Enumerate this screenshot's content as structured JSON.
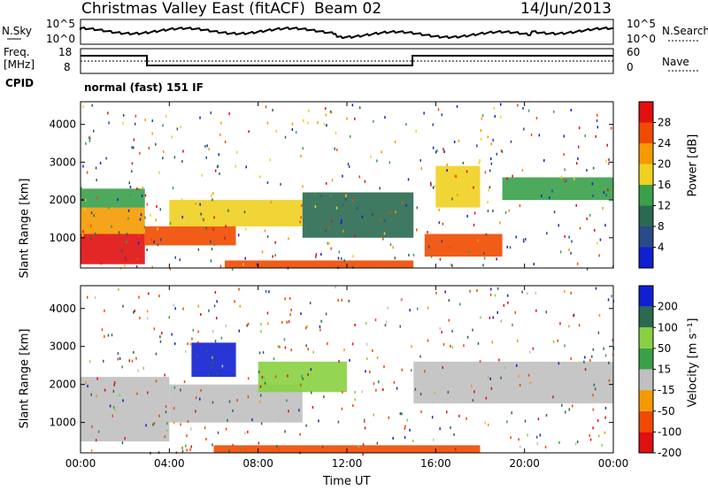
{
  "header": {
    "station": "Christmas Valley East (fitACF)",
    "beam": "Beam 02",
    "date": "14/Jun/2013"
  },
  "noise_panel": {
    "left_label": "N.Sky",
    "right_label": "N.Search",
    "left_ticks": [
      "10^5",
      "10^0"
    ],
    "right_ticks": [
      "10^5",
      "10^0"
    ]
  },
  "freq_panel": {
    "left_label_1": "Freq.",
    "left_label_2": "[MHz]",
    "right_label": "Nave",
    "left_ticks": [
      "18",
      "8"
    ],
    "right_ticks": [
      "60",
      "0"
    ]
  },
  "cpid": {
    "label": "CPID",
    "value": "normal (fast) 151 IF"
  },
  "colors": {
    "red": "#e01010",
    "orange_red": "#f04a00",
    "orange": "#f59a00",
    "yellow": "#f0d020",
    "green": "#3aa04a",
    "dark_green": "#2a6a50",
    "blue_grey": "#2a4a8a",
    "blue": "#1020d0",
    "grey": "#c0c0c0",
    "light_green": "#88d040"
  },
  "chart_data": [
    {
      "type": "heatmap",
      "title": "",
      "xlabel": "Time UT",
      "ylabel": "Slant Range [km]",
      "x_ticks": [
        "00:00",
        "04:00",
        "08:00",
        "12:00",
        "16:00",
        "20:00",
        "00:00"
      ],
      "y_ticks": [
        "1000",
        "2000",
        "3000",
        "4000"
      ],
      "xlim": [
        0,
        24
      ],
      "ylim": [
        200,
        4600
      ],
      "colorbar": {
        "label": "Power [dB]",
        "ticks": [
          "4",
          "8",
          "12",
          "16",
          "20",
          "24",
          "28"
        ],
        "range": [
          0,
          30
        ]
      },
      "regions": [
        {
          "t": [
            0,
            2.9
          ],
          "r": [
            300,
            1100
          ],
          "value": 27
        },
        {
          "t": [
            0,
            2.9
          ],
          "r": [
            1100,
            1800
          ],
          "value": 20
        },
        {
          "t": [
            0,
            2.9
          ],
          "r": [
            1800,
            2300
          ],
          "value": 14
        },
        {
          "t": [
            2.9,
            7
          ],
          "r": [
            800,
            1300
          ],
          "value": 26
        },
        {
          "t": [
            4,
            10
          ],
          "r": [
            1300,
            2000
          ],
          "value": 16
        },
        {
          "t": [
            10,
            15
          ],
          "r": [
            1000,
            2200
          ],
          "value": 10
        },
        {
          "t": [
            15.5,
            19
          ],
          "r": [
            500,
            1100
          ],
          "value": 25
        },
        {
          "t": [
            16,
            18
          ],
          "r": [
            1800,
            2900
          ],
          "value": 18
        },
        {
          "t": [
            19,
            24
          ],
          "r": [
            2000,
            2600
          ],
          "value": 13
        },
        {
          "t": [
            6.5,
            15
          ],
          "r": [
            200,
            400
          ],
          "value": 25
        }
      ]
    },
    {
      "type": "heatmap",
      "title": "",
      "xlabel": "Time UT",
      "ylabel": "Slant Range [km]",
      "x_ticks": [
        "00:00",
        "04:00",
        "08:00",
        "12:00",
        "16:00",
        "20:00",
        "00:00"
      ],
      "y_ticks": [
        "1000",
        "2000",
        "3000",
        "4000"
      ],
      "xlim": [
        0,
        24
      ],
      "ylim": [
        200,
        4600
      ],
      "colorbar": {
        "label": "Velocity [m s⁻¹]",
        "ticks": [
          "200",
          "100",
          "50",
          "15",
          "-15",
          "-50",
          "-100",
          "-200"
        ],
        "range": [
          -250,
          250
        ]
      },
      "regions": [
        {
          "t": [
            0,
            4
          ],
          "r": [
            500,
            2200
          ],
          "value": 0
        },
        {
          "t": [
            4,
            10
          ],
          "r": [
            1000,
            2000
          ],
          "value": 0
        },
        {
          "t": [
            5,
            7
          ],
          "r": [
            2200,
            3100
          ],
          "value": 180
        },
        {
          "t": [
            8,
            12
          ],
          "r": [
            1800,
            2600
          ],
          "value": 60
        },
        {
          "t": [
            15,
            24
          ],
          "r": [
            1500,
            2600
          ],
          "value": 0
        },
        {
          "t": [
            6,
            18
          ],
          "r": [
            200,
            400
          ],
          "value": -80
        }
      ]
    }
  ]
}
